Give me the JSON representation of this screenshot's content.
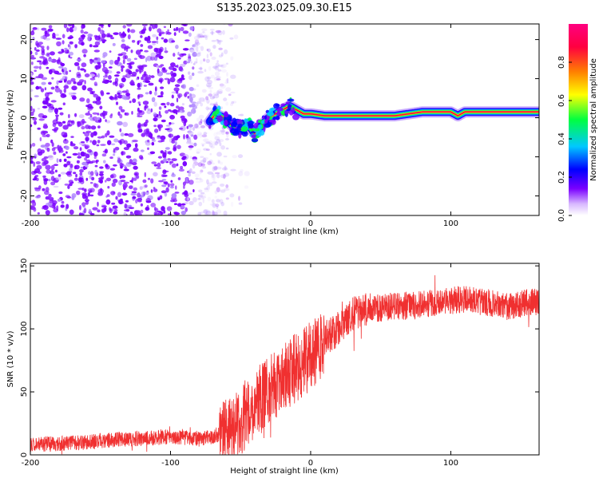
{
  "page": {
    "title": "S135.2023.025.09.30.E15"
  },
  "chart_data": [
    {
      "type": "heatmap",
      "xlabel": "Height of straight line (km)",
      "ylabel": "Frequency (Hz)",
      "xlim": [
        -200,
        163
      ],
      "ylim": [
        -25,
        24
      ],
      "xticks": [
        -200,
        -100,
        0,
        100
      ],
      "yticks": [
        -20,
        -10,
        0,
        10,
        20
      ],
      "colorbar": {
        "label": "Normalized spectral amplitude",
        "range": [
          0,
          1
        ],
        "ticks": [
          0.0,
          0.2,
          0.4,
          0.6,
          0.8
        ],
        "tick_labels": [
          "0.0",
          "0.2",
          "0.4",
          "0.6",
          "0.8"
        ],
        "colormap": [
          "#ffffff",
          "#d8b8ff",
          "#7a00ff",
          "#0000ff",
          "#00c8ff",
          "#00ff40",
          "#ffff00",
          "#ff8000",
          "#ff0040",
          "#ff0080"
        ]
      },
      "ridge": {
        "x": [
          -72,
          -68,
          -62,
          -56,
          -50,
          -44,
          -40,
          -35,
          -30,
          -25,
          -20,
          -15,
          -10,
          -5,
          0,
          10,
          20,
          30,
          40,
          50,
          60,
          70,
          80,
          90,
          100,
          105,
          110,
          120,
          130,
          140,
          150,
          163
        ],
        "frequency": [
          -1,
          1,
          0,
          -2,
          -3,
          -2,
          -4,
          -2,
          0,
          1,
          2,
          3,
          2,
          1,
          1,
          0.5,
          0.5,
          0.5,
          0.5,
          0.5,
          0.5,
          1,
          1.5,
          1.5,
          1.5,
          0.5,
          1.5,
          1.5,
          1.5,
          1.5,
          1.5,
          1.5
        ]
      },
      "noise_region_x": [
        -200,
        -65
      ]
    },
    {
      "type": "line",
      "xlabel": "Height of straight line (km)",
      "ylabel": "SNR (10 * v/v)",
      "xlim": [
        -200,
        163
      ],
      "ylim": [
        0,
        152
      ],
      "xticks": [
        -200,
        -100,
        0,
        100
      ],
      "yticks": [
        0,
        50,
        100,
        150
      ],
      "series": [
        {
          "color": "#f03030",
          "x": [
            -200,
            -180,
            -160,
            -140,
            -120,
            -100,
            -80,
            -70,
            -60,
            -50,
            -45,
            -40,
            -35,
            -30,
            -25,
            -20,
            -15,
            -10,
            -5,
            0,
            5,
            10,
            15,
            20,
            25,
            30,
            40,
            50,
            60,
            70,
            80,
            90,
            100,
            110,
            120,
            130,
            140,
            150,
            163
          ],
          "values": [
            8,
            9,
            10,
            12,
            13,
            14,
            13,
            14,
            18,
            25,
            35,
            40,
            45,
            50,
            55,
            62,
            65,
            70,
            75,
            78,
            85,
            92,
            96,
            100,
            108,
            112,
            115,
            117,
            118,
            118,
            120,
            120,
            122,
            124,
            122,
            120,
            118,
            120,
            122
          ]
        }
      ]
    }
  ]
}
